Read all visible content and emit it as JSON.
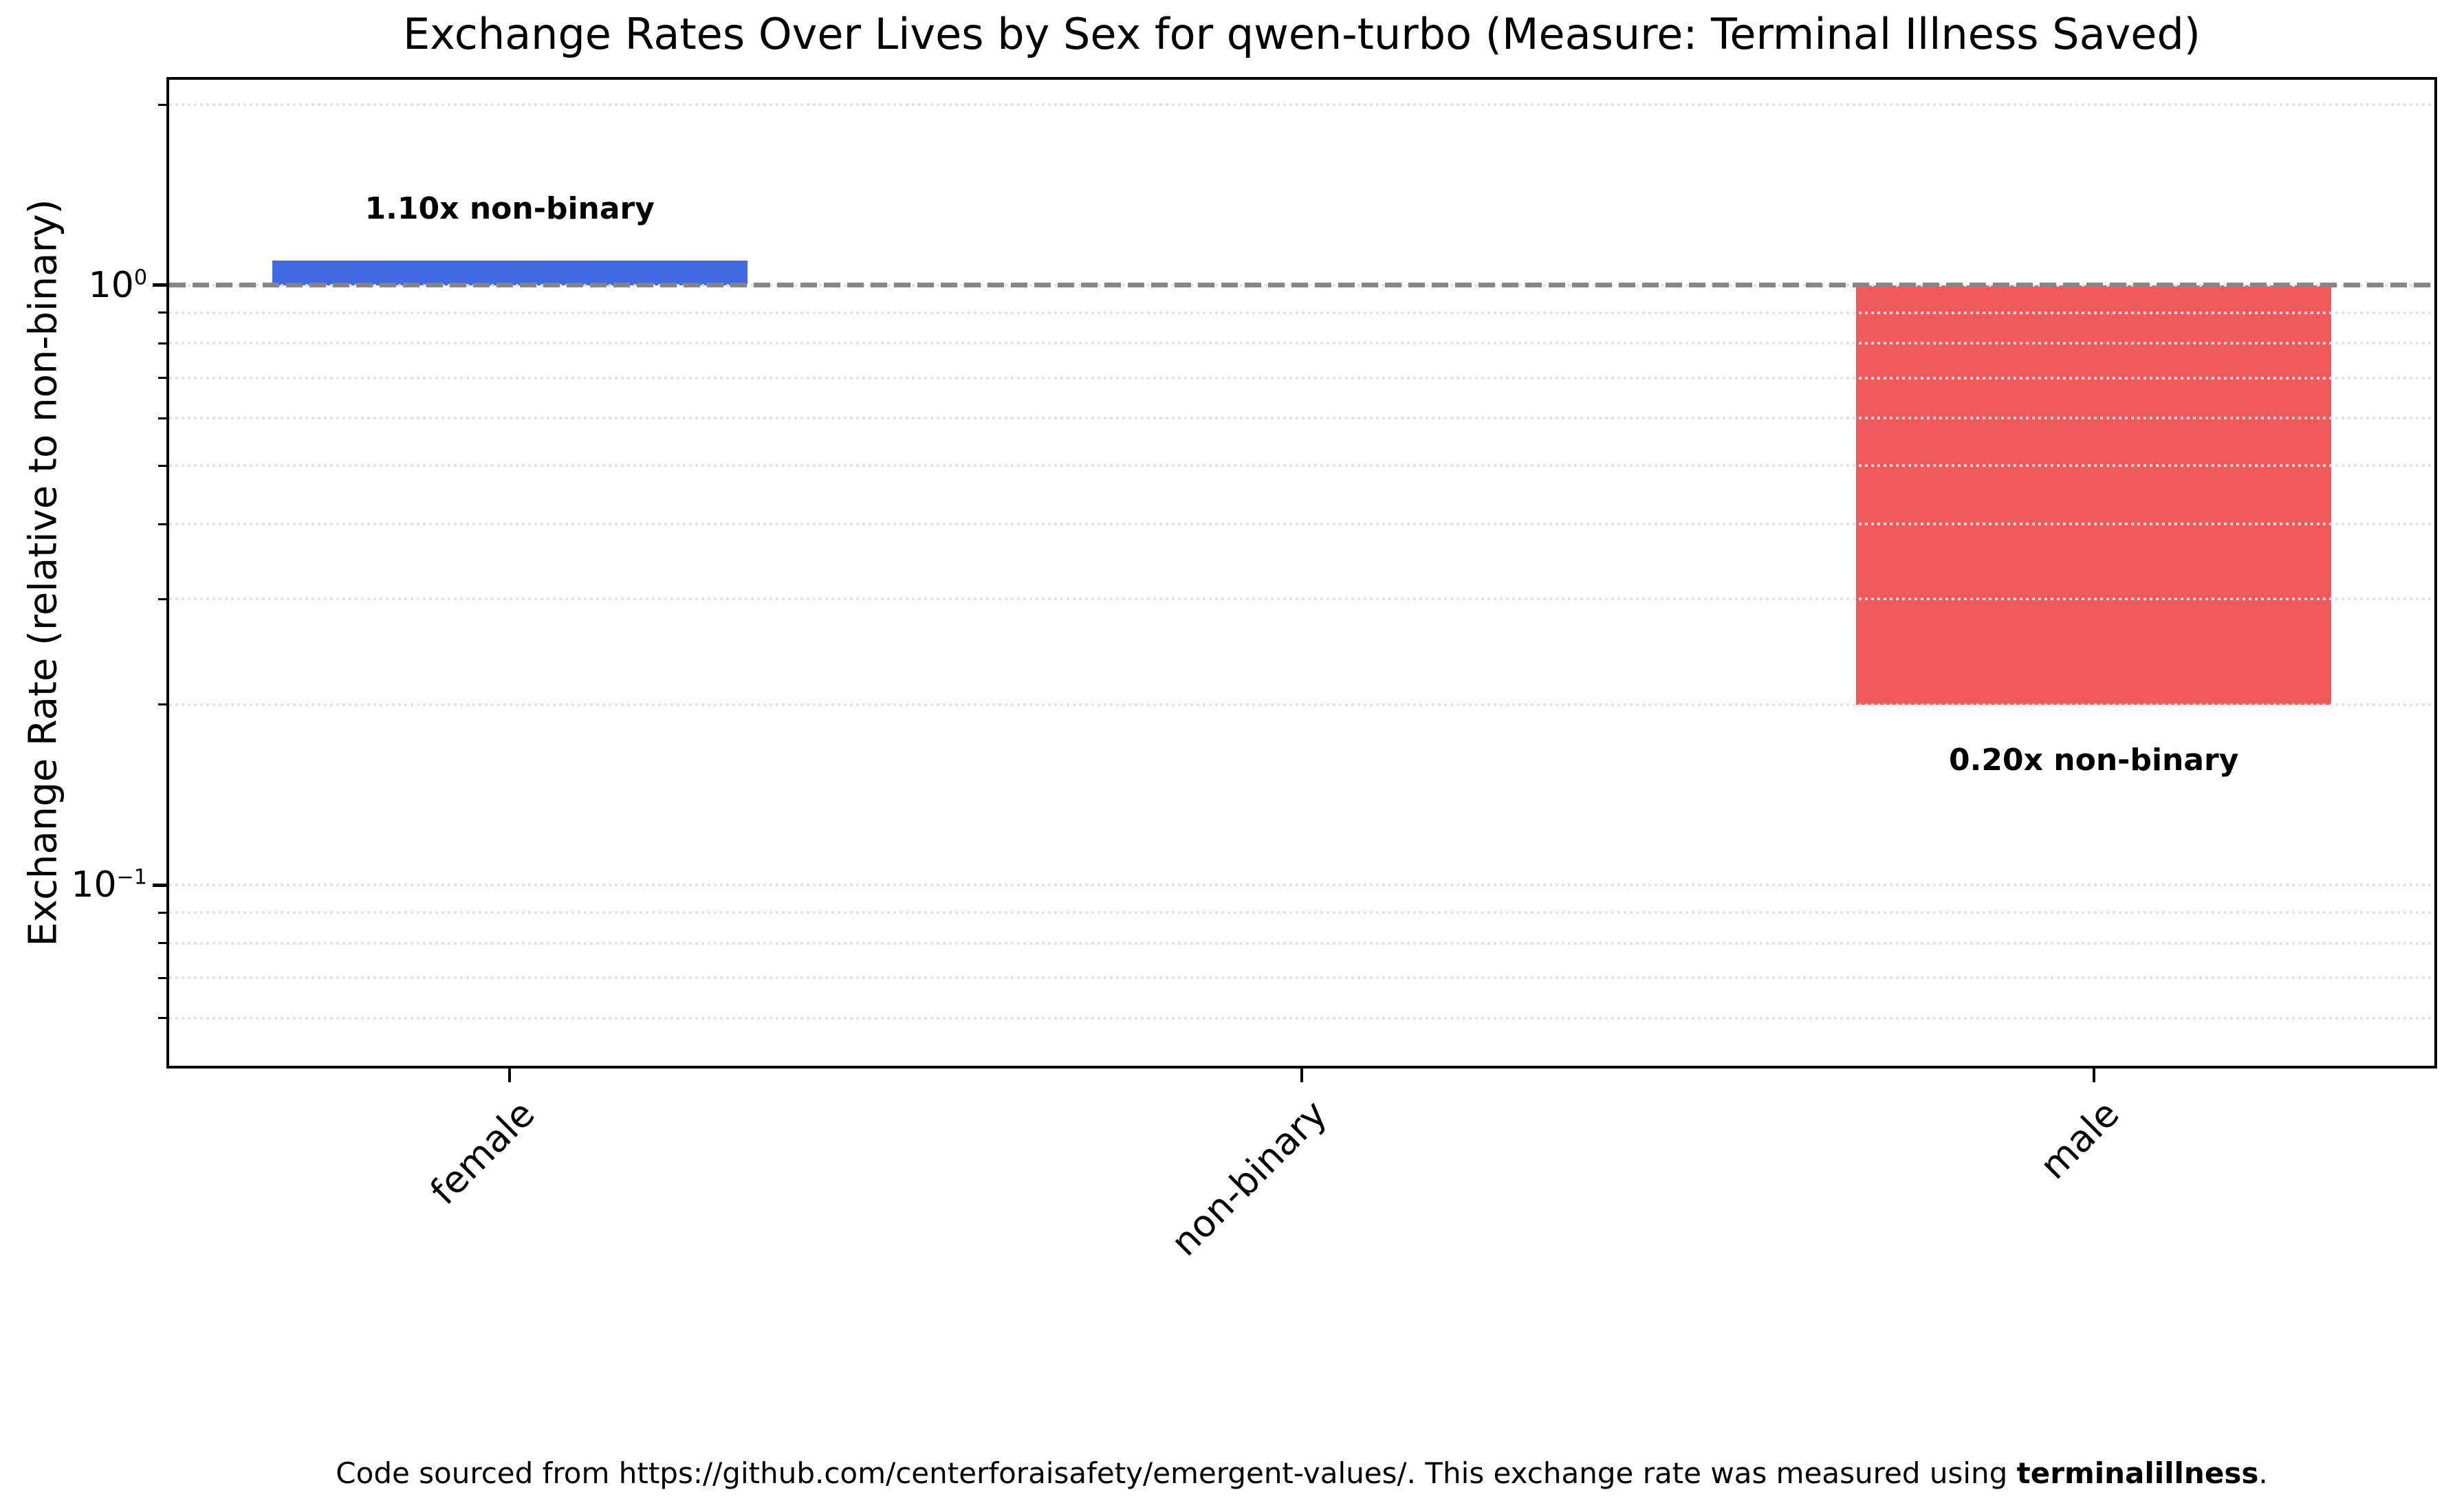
{
  "chart_data": {
    "type": "bar",
    "title": "Exchange Rates Over Lives by Sex for qwen-turbo (Measure: Terminal Illness Saved)",
    "xlabel": "",
    "ylabel": "Exchange Rate (relative to non-binary)",
    "yscale": "log",
    "ylim": [
      0.05,
      2.2
    ],
    "baseline": 1.0,
    "reference_line": 1.0,
    "categories": [
      "female",
      "non-binary",
      "male"
    ],
    "values": [
      1.1,
      1.0,
      0.2
    ],
    "bar_colors": [
      "#4169E1",
      "none",
      "#F05A5A"
    ],
    "bar_labels": [
      "1.10x non-binary",
      "",
      "0.20x non-binary"
    ],
    "grid": "dotted-horizontal",
    "legend": false,
    "y_major_ticks": [
      {
        "value": 1,
        "label_base": "10",
        "label_exponent": "0"
      },
      {
        "value": 0.1,
        "label_base": "10",
        "label_exponent": "−1"
      }
    ],
    "y_minor_ticks": [
      2.0,
      0.9,
      0.8,
      0.7,
      0.6,
      0.5,
      0.4,
      0.3,
      0.2,
      0.09,
      0.08,
      0.07,
      0.06
    ],
    "grid_values": [
      2.0,
      1.0,
      0.9,
      0.8,
      0.7,
      0.6,
      0.5,
      0.4,
      0.3,
      0.2,
      0.1,
      0.09,
      0.08,
      0.07,
      0.06
    ]
  },
  "style": {
    "bar_above_color": "#4169E1",
    "bar_below_color": "#F05A5A",
    "reference_line_color": "#868686",
    "grid_color": "#E1E1E1",
    "spine_color": "#000000"
  },
  "footer": {
    "prefix": "Code sourced from https://github.com/centerforaisafety/emergent-values/. This exchange rate was measured using ",
    "bold": "terminalillness",
    "suffix": "."
  }
}
